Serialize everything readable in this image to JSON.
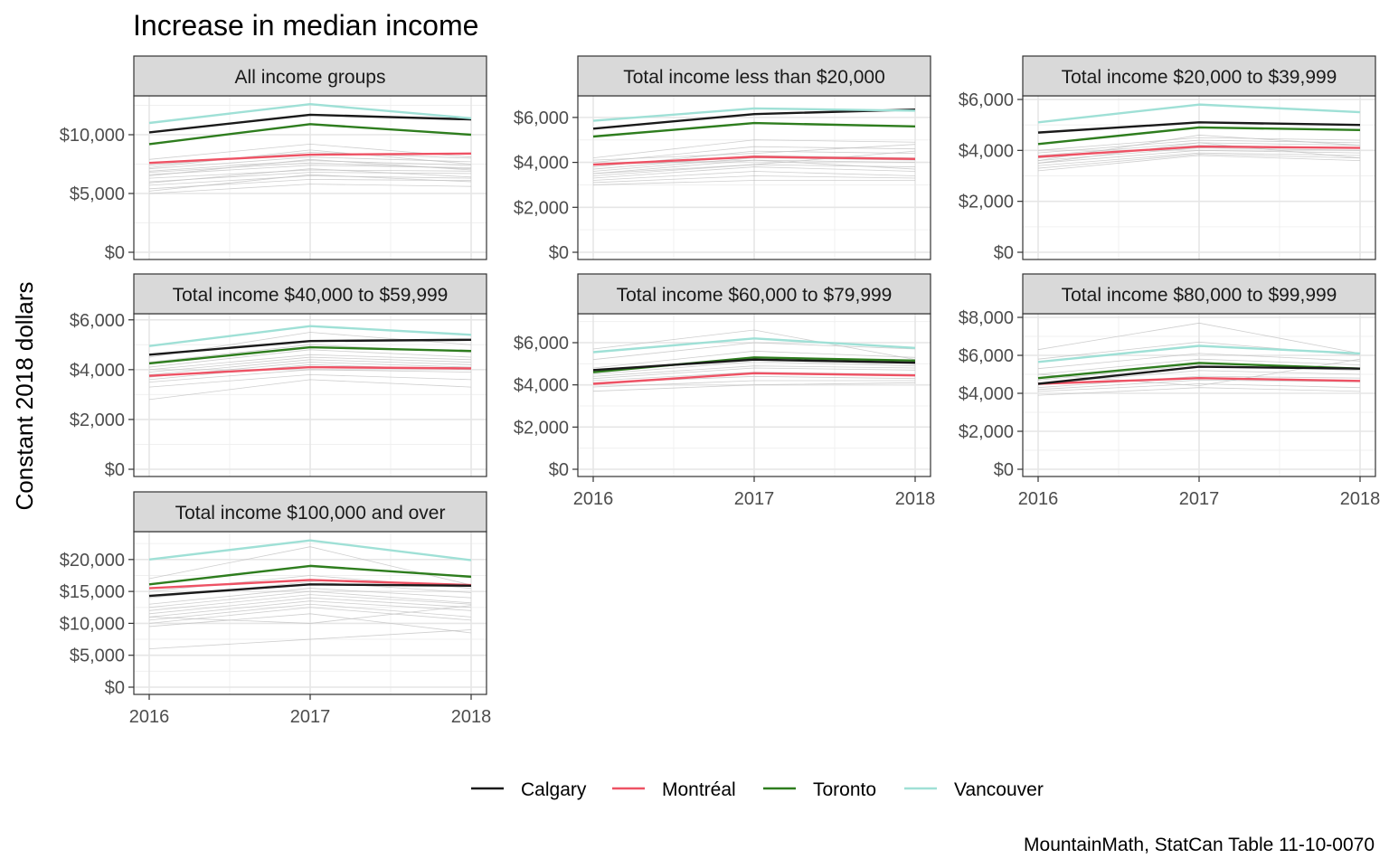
{
  "chart_data": {
    "type": "line",
    "title": "Increase in median income",
    "ylabel": "Constant 2018 dollars",
    "xlabel": "",
    "caption": "MountainMath, StatCan Table 11-10-0070",
    "x": [
      "2016",
      "2017",
      "2018"
    ],
    "legend_position": "bottom",
    "grid": true,
    "highlight_colors": {
      "Calgary": "#1a1a1a",
      "Montréal": "#ee5264",
      "Toronto": "#2e7d1e",
      "Vancouver": "#9fe0d6"
    },
    "background_series_color": "#bdbdbd",
    "legend": [
      "Calgary",
      "Montréal",
      "Toronto",
      "Vancouver"
    ],
    "panels": [
      {
        "title": "All income groups",
        "ylim": [
          0,
          13000
        ],
        "yticks": [
          0,
          5000,
          10000
        ],
        "ytick_labels": [
          "$0",
          "$5,000",
          "$10,000"
        ],
        "series": [
          {
            "name": "Calgary",
            "values": [
              10200,
              11700,
              11300
            ]
          },
          {
            "name": "Montréal",
            "values": [
              7600,
              8300,
              8400
            ]
          },
          {
            "name": "Toronto",
            "values": [
              9200,
              10900,
              10000
            ]
          },
          {
            "name": "Vancouver",
            "values": [
              11000,
              12600,
              11400
            ]
          }
        ],
        "background": [
          [
            7900,
            9200,
            8100
          ],
          [
            7400,
            8500,
            8000
          ],
          [
            7100,
            8100,
            7700
          ],
          [
            6900,
            7800,
            7400
          ],
          [
            6600,
            7400,
            7200
          ],
          [
            6300,
            7000,
            6900
          ],
          [
            6000,
            6800,
            6700
          ],
          [
            5700,
            6500,
            6300
          ],
          [
            5400,
            6200,
            6100
          ],
          [
            5000,
            5800,
            5600
          ],
          [
            7200,
            8700,
            7500
          ],
          [
            6500,
            7900,
            7000
          ],
          [
            5900,
            7100,
            6400
          ],
          [
            5200,
            6600,
            6000
          ],
          [
            6800,
            7600,
            7100
          ]
        ]
      },
      {
        "title": "Total income less than $20,000",
        "ylim": [
          0,
          6800
        ],
        "yticks": [
          0,
          2000,
          4000,
          6000
        ],
        "ytick_labels": [
          "$0",
          "$2,000",
          "$4,000",
          "$6,000"
        ],
        "series": [
          {
            "name": "Calgary",
            "values": [
              5500,
              6150,
              6350
            ]
          },
          {
            "name": "Montréal",
            "values": [
              3900,
              4250,
              4150
            ]
          },
          {
            "name": "Toronto",
            "values": [
              5150,
              5750,
              5600
            ]
          },
          {
            "name": "Vancouver",
            "values": [
              5850,
              6400,
              6300
            ]
          }
        ],
        "background": [
          [
            4200,
            5000,
            4900
          ],
          [
            4000,
            4700,
            4600
          ],
          [
            3800,
            4500,
            4400
          ],
          [
            3700,
            4300,
            4200
          ],
          [
            3600,
            4200,
            4100
          ],
          [
            3500,
            4100,
            4000
          ],
          [
            3400,
            3900,
            3800
          ],
          [
            3300,
            3800,
            3600
          ],
          [
            3200,
            3600,
            3400
          ],
          [
            3100,
            3400,
            3300
          ],
          [
            3000,
            3200,
            3200
          ],
          [
            4100,
            4400,
            4800
          ],
          [
            3500,
            3900,
            4500
          ],
          [
            3900,
            4100,
            3700
          ]
        ]
      },
      {
        "title": "Total income $20,000 to $39,999",
        "ylim": [
          0,
          6000
        ],
        "yticks": [
          0,
          2000,
          4000,
          6000
        ],
        "ytick_labels": [
          "$0",
          "$2,000",
          "$4,000",
          "$6,000"
        ],
        "series": [
          {
            "name": "Calgary",
            "values": [
              4700,
              5100,
              5000
            ]
          },
          {
            "name": "Montréal",
            "values": [
              3750,
              4150,
              4100
            ]
          },
          {
            "name": "Toronto",
            "values": [
              4250,
              4900,
              4800
            ]
          },
          {
            "name": "Vancouver",
            "values": [
              5100,
              5800,
              5500
            ]
          }
        ],
        "background": [
          [
            4000,
            4500,
            4400
          ],
          [
            3900,
            4400,
            4300
          ],
          [
            3800,
            4300,
            4200
          ],
          [
            3700,
            4200,
            4100
          ],
          [
            3600,
            4100,
            4000
          ],
          [
            3500,
            4000,
            3900
          ],
          [
            3400,
            3900,
            3800
          ],
          [
            3300,
            3850,
            3700
          ],
          [
            3200,
            3800,
            3600
          ],
          [
            3600,
            4600,
            4200
          ],
          [
            3500,
            4300,
            3700
          ]
        ]
      },
      {
        "title": "Total income $40,000 to $59,999",
        "ylim": [
          0,
          6100
        ],
        "yticks": [
          0,
          2000,
          4000,
          6000
        ],
        "ytick_labels": [
          "$0",
          "$2,000",
          "$4,000",
          "$6,000"
        ],
        "series": [
          {
            "name": "Calgary",
            "values": [
              4600,
              5150,
              5200
            ]
          },
          {
            "name": "Montréal",
            "values": [
              3750,
              4100,
              4050
            ]
          },
          {
            "name": "Toronto",
            "values": [
              4250,
              4900,
              4750
            ]
          },
          {
            "name": "Vancouver",
            "values": [
              4950,
              5750,
              5400
            ]
          }
        ],
        "background": [
          [
            4500,
            5500,
            5000
          ],
          [
            4300,
            5000,
            4700
          ],
          [
            4100,
            4800,
            4500
          ],
          [
            4000,
            4600,
            4400
          ],
          [
            3900,
            4500,
            4300
          ],
          [
            3800,
            4400,
            4200
          ],
          [
            3700,
            4300,
            4100
          ],
          [
            3600,
            4200,
            4000
          ],
          [
            3500,
            4000,
            3900
          ],
          [
            3300,
            3800,
            3600
          ],
          [
            2800,
            3600,
            3300
          ]
        ]
      },
      {
        "title": "Total income $60,000 to $79,999",
        "ylim": [
          0,
          7200
        ],
        "yticks": [
          0,
          2000,
          4000,
          6000
        ],
        "ytick_labels": [
          "$0",
          "$2,000",
          "$4,000",
          "$6,000"
        ],
        "series": [
          {
            "name": "Calgary",
            "values": [
              4700,
              5200,
              5050
            ]
          },
          {
            "name": "Montréal",
            "values": [
              4050,
              4550,
              4450
            ]
          },
          {
            "name": "Toronto",
            "values": [
              4600,
              5300,
              5150
            ]
          },
          {
            "name": "Vancouver",
            "values": [
              5550,
              6200,
              5750
            ]
          }
        ],
        "background": [
          [
            5700,
            6600,
            5200
          ],
          [
            5200,
            6000,
            5700
          ],
          [
            4800,
            5600,
            5300
          ],
          [
            4600,
            5300,
            5100
          ],
          [
            4500,
            5100,
            4900
          ],
          [
            4400,
            4900,
            4800
          ],
          [
            4300,
            4800,
            4700
          ],
          [
            4200,
            4600,
            4500
          ],
          [
            4100,
            4400,
            4300
          ],
          [
            3900,
            4200,
            4200
          ],
          [
            3700,
            4000,
            4100
          ]
        ]
      },
      {
        "title": "Total income $80,000 to $99,999",
        "ylim": [
          0,
          8000
        ],
        "yticks": [
          0,
          2000,
          4000,
          6000,
          8000
        ],
        "ytick_labels": [
          "$0",
          "$2,000",
          "$4,000",
          "$6,000",
          "$8,000"
        ],
        "series": [
          {
            "name": "Calgary",
            "values": [
              4500,
              5400,
              5300
            ]
          },
          {
            "name": "Montréal",
            "values": [
              4500,
              4800,
              4650
            ]
          },
          {
            "name": "Toronto",
            "values": [
              4800,
              5600,
              5300
            ]
          },
          {
            "name": "Vancouver",
            "values": [
              5650,
              6500,
              6100
            ]
          }
        ],
        "background": [
          [
            6300,
            7700,
            6100
          ],
          [
            5800,
            6700,
            6000
          ],
          [
            5300,
            6100,
            5700
          ],
          [
            5000,
            5800,
            5500
          ],
          [
            4700,
            5500,
            5200
          ],
          [
            4500,
            5200,
            5000
          ],
          [
            4300,
            4900,
            4800
          ],
          [
            4200,
            4700,
            4600
          ],
          [
            4100,
            4500,
            4300
          ],
          [
            3900,
            4300,
            4100
          ],
          [
            5000,
            4400,
            5800
          ]
        ]
      },
      {
        "title": "Total income $100,000 and over",
        "ylim": [
          0,
          23800
        ],
        "yticks": [
          0,
          5000,
          10000,
          15000,
          20000
        ],
        "ytick_labels": [
          "$0",
          "$5,000",
          "$10,000",
          "$15,000",
          "$20,000"
        ],
        "series": [
          {
            "name": "Calgary",
            "values": [
              14300,
              16100,
              15900
            ]
          },
          {
            "name": "Montréal",
            "values": [
              15500,
              16800,
              16000
            ]
          },
          {
            "name": "Toronto",
            "values": [
              16100,
              19000,
              17300
            ]
          },
          {
            "name": "Vancouver",
            "values": [
              20000,
              23000,
              19900
            ]
          }
        ],
        "background": [
          [
            17000,
            22000,
            16000
          ],
          [
            15000,
            17500,
            15500
          ],
          [
            14000,
            16500,
            14800
          ],
          [
            13000,
            15500,
            14000
          ],
          [
            12500,
            15000,
            13200
          ],
          [
            12000,
            14500,
            13000
          ],
          [
            11500,
            14000,
            12500
          ],
          [
            11000,
            13500,
            12000
          ],
          [
            10500,
            13000,
            11000
          ],
          [
            10000,
            12500,
            10500
          ],
          [
            9500,
            11500,
            8500
          ],
          [
            6000,
            7500,
            9000
          ],
          [
            11000,
            10000,
            12800
          ]
        ]
      }
    ]
  }
}
